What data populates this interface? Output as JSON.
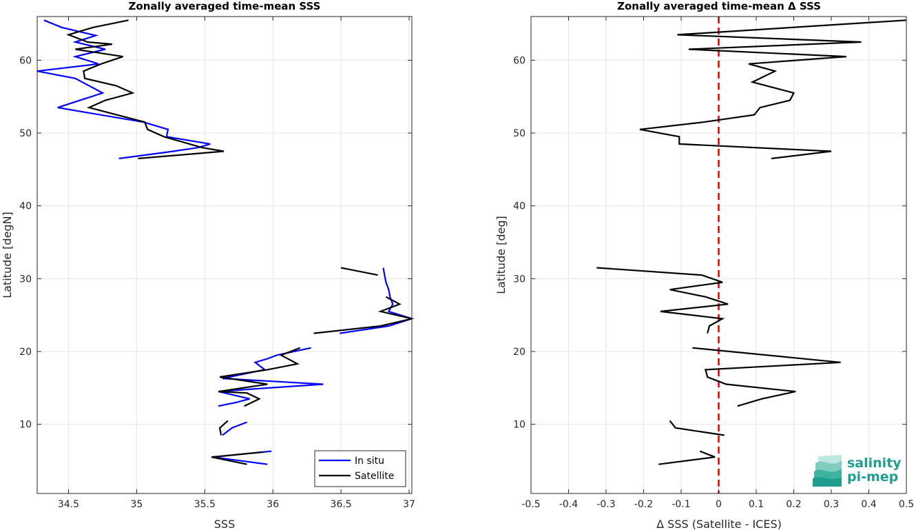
{
  "chart_data": [
    {
      "type": "line",
      "title": "Zonally averaged time-mean SSS",
      "xlabel": "SSS",
      "ylabel": "Latitude [degN]",
      "xlim": [
        34.27,
        37.02
      ],
      "ylim": [
        0.5,
        66
      ],
      "xticks": [
        34.5,
        35,
        35.5,
        36,
        36.5,
        37
      ],
      "xtick_labels": [
        "34.5",
        "35",
        "35.5",
        "36",
        "36.5",
        "37"
      ],
      "yticks": [
        10,
        20,
        30,
        40,
        50,
        60
      ],
      "ytick_labels": [
        "10",
        "20",
        "30",
        "40",
        "50",
        "60"
      ],
      "grid": true,
      "legend": "bottom-right",
      "series": [
        {
          "name": "In situ",
          "color": "#0000ff",
          "segments": [
            [
              [
                34.32,
                65.5
              ],
              [
                34.45,
                64.5
              ],
              [
                34.7,
                63.4
              ],
              [
                34.55,
                62.5
              ],
              [
                34.77,
                61.5
              ],
              [
                34.55,
                60.5
              ],
              [
                34.72,
                59.5
              ],
              [
                34.27,
                58.5
              ],
              [
                34.55,
                57.5
              ],
              [
                34.75,
                55.5
              ],
              [
                34.42,
                53.5
              ],
              [
                35.05,
                51.5
              ],
              [
                35.23,
                50.5
              ],
              [
                35.22,
                49.5
              ],
              [
                35.54,
                48.5
              ],
              [
                35.45,
                48.0
              ],
              [
                35.27,
                47.5
              ],
              [
                34.87,
                46.5
              ]
            ],
            [
              [
                36.49,
                22.5
              ],
              [
                36.85,
                23.5
              ],
              [
                37.02,
                24.5
              ],
              [
                36.85,
                25.5
              ],
              [
                36.88,
                26.5
              ],
              [
                36.86,
                27.5
              ],
              [
                36.85,
                28.5
              ],
              [
                36.83,
                29.5
              ],
              [
                36.82,
                30.5
              ],
              [
                36.81,
                31.5
              ]
            ],
            [
              [
                36.28,
                20.5
              ],
              [
                36.03,
                19.5
              ],
              [
                35.96,
                19.0
              ],
              [
                35.87,
                18.5
              ],
              [
                35.94,
                17.5
              ],
              [
                35.68,
                16.5
              ],
              [
                35.63,
                16.3
              ],
              [
                36.37,
                15.5
              ],
              [
                35.82,
                14.8
              ],
              [
                35.6,
                14.5
              ],
              [
                35.83,
                13.5
              ],
              [
                35.73,
                13.0
              ],
              [
                35.6,
                12.5
              ]
            ],
            [
              [
                35.81,
                10.3
              ],
              [
                35.7,
                9.5
              ],
              [
                35.63,
                8.5
              ]
            ],
            [
              [
                35.99,
                6.3
              ],
              [
                35.56,
                5.5
              ],
              [
                35.96,
                4.5
              ]
            ]
          ]
        },
        {
          "name": "Satellite",
          "color": "#000000",
          "segments": [
            [
              [
                34.94,
                65.5
              ],
              [
                34.68,
                64.5
              ],
              [
                34.5,
                63.5
              ],
              [
                34.64,
                62.5
              ],
              [
                34.82,
                62.2
              ],
              [
                34.55,
                61.5
              ],
              [
                34.9,
                60.5
              ],
              [
                34.74,
                59.5
              ],
              [
                34.61,
                58.5
              ],
              [
                34.62,
                57.5
              ],
              [
                34.85,
                56.5
              ],
              [
                34.97,
                55.5
              ],
              [
                34.77,
                54.5
              ],
              [
                34.65,
                53.5
              ],
              [
                35.06,
                51.5
              ],
              [
                35.08,
                50.5
              ],
              [
                35.2,
                49.5
              ],
              [
                35.48,
                48.0
              ],
              [
                35.64,
                47.5
              ],
              [
                35.01,
                46.5
              ]
            ],
            [
              [
                36.5,
                31.5
              ],
              [
                36.77,
                30.5
              ]
            ],
            [
              [
                36.3,
                22.5
              ],
              [
                36.79,
                23.5
              ],
              [
                37.02,
                24.5
              ],
              [
                36.79,
                25.5
              ],
              [
                36.93,
                26.5
              ],
              [
                36.83,
                27.5
              ]
            ],
            [
              [
                36.2,
                20.5
              ],
              [
                36.06,
                19.5
              ],
              [
                36.18,
                18.3
              ],
              [
                35.96,
                17.5
              ],
              [
                35.61,
                16.5
              ],
              [
                35.96,
                15.5
              ],
              [
                35.6,
                14.5
              ],
              [
                35.81,
                14.3
              ],
              [
                35.9,
                13.5
              ],
              [
                35.79,
                12.5
              ]
            ],
            [
              [
                35.67,
                10.5
              ],
              [
                35.61,
                9.5
              ],
              [
                35.62,
                8.5
              ]
            ],
            [
              [
                35.93,
                6.2
              ],
              [
                35.55,
                5.5
              ],
              [
                35.81,
                4.5
              ]
            ]
          ]
        }
      ]
    },
    {
      "type": "line",
      "title": "Zonally averaged time-mean Δ SSS",
      "xlabel": "Δ SSS (Satellite - ICES)",
      "ylabel": "Latitude [deg]",
      "xlim": [
        -0.5,
        0.5
      ],
      "ylim": [
        0.5,
        66
      ],
      "xticks": [
        -0.5,
        -0.4,
        -0.3,
        -0.2,
        -0.1,
        0,
        0.1,
        0.2,
        0.3,
        0.4,
        0.5
      ],
      "xtick_labels": [
        "-0.5",
        "-0.4",
        "-0.3",
        "-0.2",
        "-0.1",
        "0",
        "0.1",
        "0.2",
        "0.3",
        "0.4",
        "0.5"
      ],
      "yticks": [
        10,
        20,
        30,
        40,
        50,
        60
      ],
      "ytick_labels": [
        "10",
        "20",
        "30",
        "40",
        "50",
        "60"
      ],
      "grid": true,
      "reference_line": {
        "x": 0,
        "color": "#e00000",
        "style": "dashed"
      },
      "series": [
        {
          "color": "#000000",
          "segments": [
            [
              [
                0.5,
                65.5
              ],
              [
                -0.11,
                63.5
              ],
              [
                0.38,
                62.5
              ],
              [
                -0.08,
                61.5
              ],
              [
                0.34,
                60.5
              ],
              [
                0.08,
                59.5
              ],
              [
                0.15,
                58.5
              ],
              [
                0.09,
                57.0
              ],
              [
                0.2,
                55.5
              ],
              [
                0.19,
                54.5
              ],
              [
                0.11,
                53.5
              ],
              [
                0.095,
                52.5
              ],
              [
                -0.04,
                51.5
              ],
              [
                -0.21,
                50.5
              ],
              [
                -0.105,
                49.5
              ],
              [
                -0.105,
                48.5
              ],
              [
                0.3,
                47.5
              ],
              [
                0.14,
                46.5
              ]
            ],
            [
              [
                -0.325,
                31.5
              ],
              [
                -0.045,
                30.5
              ],
              [
                0.01,
                29.5
              ],
              [
                -0.13,
                28.5
              ],
              [
                -0.035,
                27.5
              ],
              [
                0.025,
                26.5
              ],
              [
                -0.155,
                25.5
              ],
              [
                0.01,
                24.5
              ],
              [
                -0.025,
                23.5
              ],
              [
                -0.03,
                22.5
              ]
            ],
            [
              [
                -0.07,
                20.5
              ],
              [
                0.325,
                18.5
              ],
              [
                -0.035,
                17.5
              ],
              [
                -0.03,
                16.5
              ],
              [
                0.02,
                15.5
              ],
              [
                0.205,
                14.5
              ],
              [
                0.115,
                13.5
              ],
              [
                0.05,
                12.5
              ]
            ],
            [
              [
                -0.13,
                10.5
              ],
              [
                -0.115,
                9.5
              ],
              [
                0.015,
                8.5
              ]
            ],
            [
              [
                -0.05,
                6.3
              ],
              [
                -0.01,
                5.5
              ],
              [
                -0.16,
                4.5
              ]
            ]
          ]
        }
      ]
    }
  ],
  "legend": {
    "items": [
      "In situ",
      "Satellite"
    ]
  },
  "logo": {
    "line1": "salinity",
    "line2": "pi-mep"
  }
}
